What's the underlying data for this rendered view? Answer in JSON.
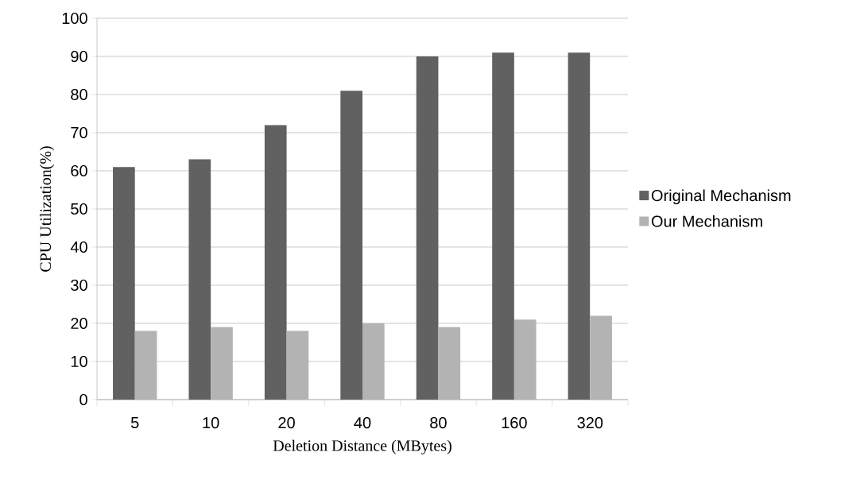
{
  "chart_data": {
    "type": "bar",
    "xlabel": "Deletion Distance (MBytes)",
    "ylabel": "CPU Utilization(%)",
    "categories": [
      "5",
      "10",
      "20",
      "40",
      "80",
      "160",
      "320"
    ],
    "series": [
      {
        "name": "Original Mechanism",
        "color": "#616161",
        "values": [
          61,
          63,
          72,
          81,
          90,
          91,
          91
        ]
      },
      {
        "name": "Our Mechanism",
        "color": "#b3b3b3",
        "values": [
          18,
          19,
          18,
          20,
          19,
          21,
          22
        ]
      }
    ],
    "ylim": [
      0,
      100
    ],
    "yticks": [
      0,
      10,
      20,
      30,
      40,
      50,
      60,
      70,
      80,
      90,
      100
    ],
    "grid": "y",
    "legend": "right"
  }
}
